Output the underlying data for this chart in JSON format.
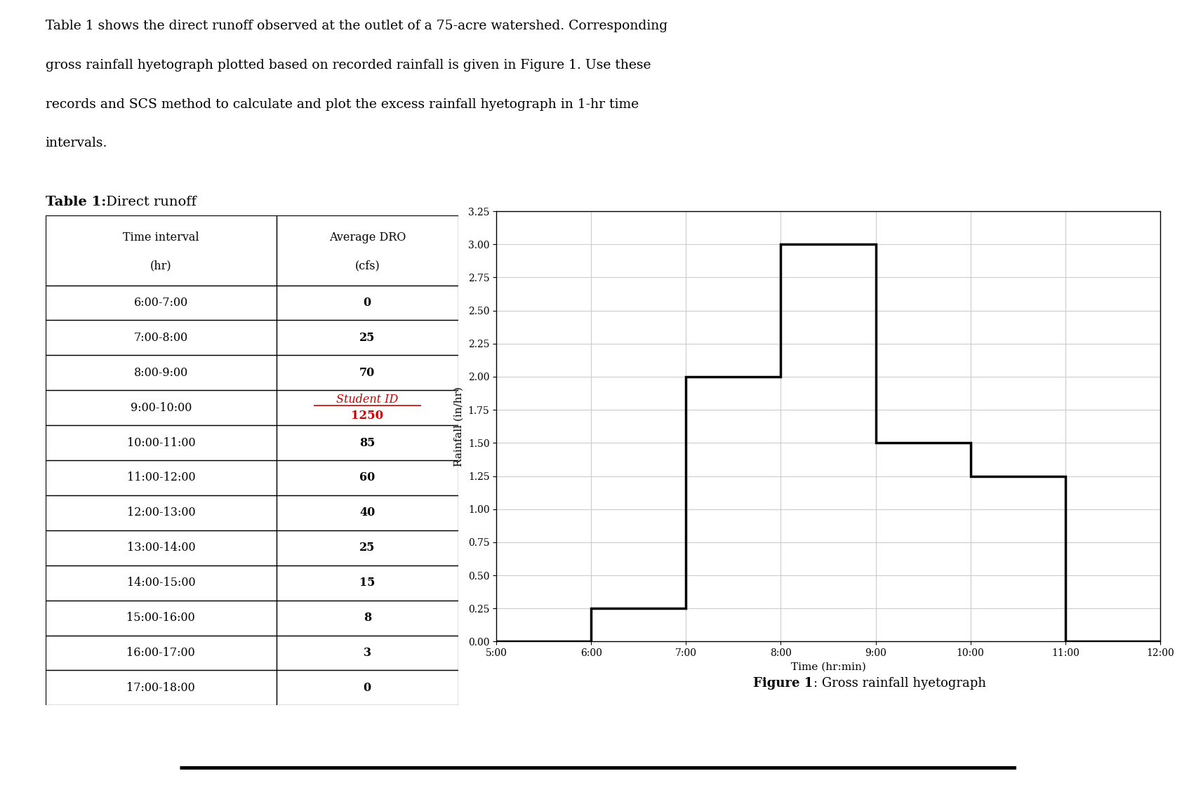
{
  "paragraph_lines": [
    "Table 1 shows the direct runoff observed at the outlet of a 75-acre watershed. Corresponding",
    "gross rainfall hyetograph plotted based on recorded rainfall is given in Figure 1. Use these",
    "records and SCS method to calculate and plot the excess rainfall hyetograph in 1-hr time",
    "intervals."
  ],
  "table_data": [
    [
      "6:00-7:00",
      "0"
    ],
    [
      "7:00-8:00",
      "25"
    ],
    [
      "8:00-9:00",
      "70"
    ],
    [
      "9:00-10:00",
      "STUDENT_ID"
    ],
    [
      "10:00-11:00",
      "85"
    ],
    [
      "11:00-12:00",
      "60"
    ],
    [
      "12:00-13:00",
      "40"
    ],
    [
      "13:00-14:00",
      "25"
    ],
    [
      "14:00-15:00",
      "15"
    ],
    [
      "15:00-16:00",
      "8"
    ],
    [
      "16:00-17:00",
      "3"
    ],
    [
      "17:00-18:00",
      "0"
    ]
  ],
  "student_id_text": "Student ID",
  "student_id_value": "1250",
  "student_id_row": 3,
  "student_id_color": "#cc0000",
  "rainfall_times": [
    5,
    6,
    7,
    8,
    9,
    10,
    11,
    12
  ],
  "rainfall_values": [
    0.0,
    0.25,
    2.0,
    3.0,
    1.5,
    1.25,
    0.0,
    0.0
  ],
  "xtick_labels": [
    "5:00",
    "6:00",
    "7:00",
    "8:00",
    "9:00",
    "10:00",
    "11:00",
    "12:00"
  ],
  "yticks": [
    0.0,
    0.25,
    0.5,
    0.75,
    1.0,
    1.25,
    1.5,
    1.75,
    2.0,
    2.25,
    2.5,
    2.75,
    3.0,
    3.25
  ],
  "ylim": [
    0.0,
    3.25
  ],
  "xlim": [
    5,
    12
  ],
  "xlabel": "Time (hr:min)",
  "ylabel": "Rainfall (in/hr)",
  "figure_caption_bold": "Figure 1",
  "figure_caption_normal": ": Gross rainfall hyetograph",
  "line_color": "#000000",
  "line_width": 2.5,
  "grid_color": "#cccccc",
  "bg_color": "#ffffff",
  "table_font_size": 11.5,
  "header_font_size": 11.5,
  "para_font_size": 13.5,
  "axis_label_font_size": 11,
  "tick_font_size": 10,
  "caption_font_size": 13,
  "title_font_size": 14,
  "separator_y": 0.033
}
